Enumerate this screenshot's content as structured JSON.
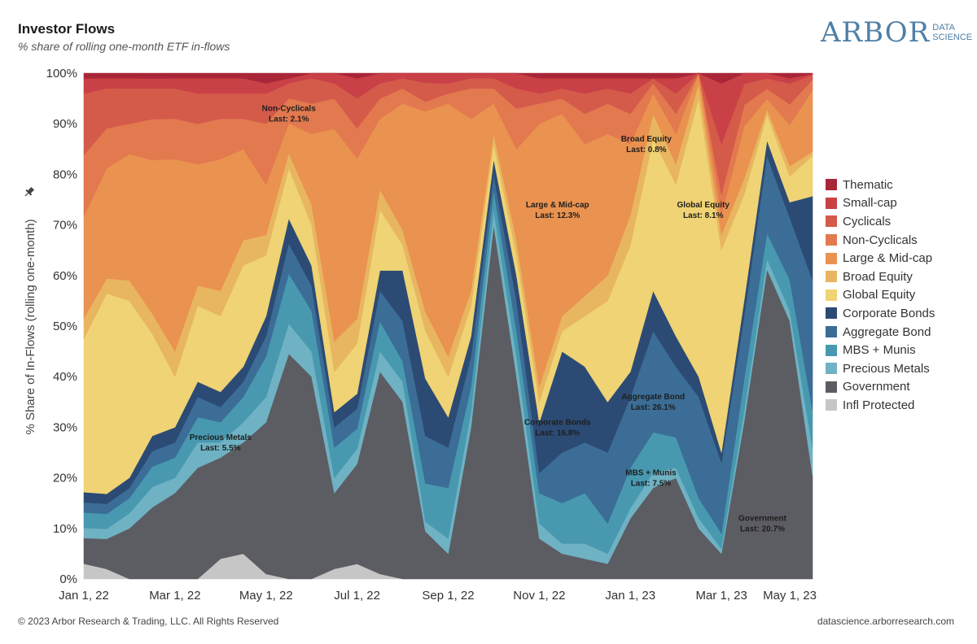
{
  "header": {
    "title": "Investor Flows",
    "subtitle": "% share of rolling one-month ETF in-flows"
  },
  "logo": {
    "main": "ARBOR",
    "sub_top": "DATA",
    "sub_bottom": "SCIENCE",
    "color": "#4f7fa6"
  },
  "footer": {
    "copyright": "© 2023 Arbor Research & Trading, LLC. All Rights Reserved",
    "url": "datascience.arborresearch.com"
  },
  "chart_data": {
    "type": "area",
    "stacked": true,
    "normalized": true,
    "title": "Investor Flows",
    "subtitle": "% share of rolling one-month ETF in-flows",
    "ylabel": "% Share of In-Flows (rolling one-month)",
    "xlabel": "",
    "ylim": [
      0,
      100
    ],
    "y_ticks": [
      "0%",
      "10%",
      "20%",
      "30%",
      "40%",
      "50%",
      "60%",
      "70%",
      "80%",
      "90%",
      "100%"
    ],
    "x_ticks": [
      "Jan 1, 22",
      "Mar 1, 22",
      "May 1, 22",
      "Jul 1, 22",
      "Sep 1, 22",
      "Nov 1, 22",
      "Jan 1, 23",
      "Mar 1, 23",
      "May 1, 23"
    ],
    "x_tick_positions": [
      0,
      2,
      4,
      6,
      8,
      10,
      12,
      14,
      15.5
    ],
    "x": [
      0,
      0.5,
      1,
      1.5,
      2,
      2.5,
      3,
      3.5,
      4,
      4.5,
      5,
      5.5,
      6,
      6.5,
      7,
      7.5,
      8,
      8.5,
      9,
      9.5,
      10,
      10.5,
      11,
      11.5,
      12,
      12.5,
      13,
      13.5,
      14,
      14.5,
      15,
      15.5,
      16
    ],
    "x_unit": "months since Jan 1, 22",
    "legend_position": "right",
    "series": [
      {
        "name": "Infl Protected",
        "color": "#c6c6c6",
        "values": [
          3,
          2,
          0,
          0,
          0,
          0,
          4,
          5,
          1,
          0,
          0,
          2,
          3,
          1,
          0,
          0,
          0,
          0,
          0,
          0,
          0,
          0,
          0,
          0,
          0,
          0,
          0,
          0,
          0,
          0,
          0,
          0,
          0
        ]
      },
      {
        "name": "Government",
        "color": "#5c5c63",
        "values": [
          5,
          6,
          10,
          14,
          17,
          22,
          20,
          22,
          30,
          45,
          40,
          15,
          20,
          40,
          35,
          10,
          5,
          30,
          70,
          40,
          8,
          5,
          4,
          3,
          12,
          18,
          20,
          10,
          5,
          30,
          60,
          50,
          20.7
        ]
      },
      {
        "name": "Precious Metals",
        "color": "#6fb2c3",
        "values": [
          2,
          2,
          3,
          4,
          3,
          5,
          3,
          4,
          5,
          6,
          5,
          3,
          3,
          4,
          4,
          2,
          3,
          3,
          3,
          4,
          3,
          2,
          3,
          2,
          2,
          3,
          2,
          2,
          1,
          2,
          2,
          2,
          5.5
        ]
      },
      {
        "name": "MBS + Munis",
        "color": "#4899b0",
        "values": [
          3,
          3,
          3,
          4,
          4,
          5,
          4,
          5,
          8,
          10,
          8,
          6,
          4,
          6,
          4,
          8,
          10,
          5,
          4,
          5,
          6,
          8,
          10,
          6,
          8,
          8,
          6,
          4,
          3,
          6,
          5,
          6,
          7.5
        ]
      },
      {
        "name": "Aggregate Bond",
        "color": "#3b6d97",
        "values": [
          2,
          2,
          2,
          3,
          3,
          4,
          3,
          3,
          4,
          6,
          5,
          4,
          4,
          6,
          8,
          10,
          8,
          6,
          3,
          6,
          4,
          10,
          10,
          14,
          14,
          20,
          14,
          20,
          14,
          12,
          15,
          12,
          26.1
        ]
      },
      {
        "name": "Corporate Bonds",
        "color": "#2c4b74",
        "values": [
          2,
          2,
          2,
          3,
          3,
          3,
          3,
          3,
          4,
          5,
          4,
          3,
          3,
          4,
          10,
          12,
          6,
          4,
          3,
          5,
          10,
          20,
          15,
          10,
          5,
          8,
          6,
          4,
          2,
          3,
          3,
          3,
          16.8
        ]
      },
      {
        "name": "Global Equity",
        "color": "#efd374",
        "values": [
          30,
          40,
          35,
          20,
          10,
          15,
          15,
          20,
          12,
          10,
          8,
          8,
          10,
          12,
          5,
          10,
          8,
          6,
          3,
          4,
          4,
          4,
          10,
          20,
          25,
          30,
          30,
          55,
          40,
          20,
          5,
          5,
          8.1
        ]
      },
      {
        "name": "Broad Equity",
        "color": "#e8b660",
        "values": [
          4,
          3,
          4,
          4,
          5,
          4,
          5,
          5,
          4,
          3,
          4,
          6,
          5,
          4,
          3,
          4,
          4,
          3,
          2,
          3,
          3,
          3,
          4,
          5,
          6,
          5,
          4,
          3,
          3,
          3,
          1,
          2,
          0.8
        ]
      },
      {
        "name": "Large & Mid-cap",
        "color": "#ea9250",
        "values": [
          20,
          22,
          25,
          30,
          38,
          24,
          26,
          18,
          10,
          6,
          14,
          42,
          32,
          14,
          25,
          42,
          50,
          34,
          6,
          18,
          52,
          40,
          30,
          28,
          14,
          4,
          6,
          2,
          4,
          10,
          2,
          8,
          12.3
        ]
      },
      {
        "name": "Non-Cyclicals",
        "color": "#e2794f",
        "values": [
          12,
          8,
          6,
          8,
          8,
          8,
          8,
          6,
          12,
          5,
          6,
          6,
          6,
          4,
          3,
          2,
          2,
          6,
          3,
          8,
          4,
          3,
          6,
          6,
          6,
          2,
          4,
          0,
          4,
          4,
          2,
          4,
          2.1
        ]
      },
      {
        "name": "Cyclicals",
        "color": "#d45a4a",
        "values": [
          12,
          8,
          7,
          6,
          6,
          6,
          5,
          5,
          6,
          3,
          5,
          3,
          6,
          3,
          2,
          4,
          2,
          2,
          2,
          4,
          2,
          2,
          4,
          3,
          4,
          1,
          4,
          0,
          10,
          4,
          2,
          4,
          1
        ]
      },
      {
        "name": "Small-cap",
        "color": "#c94046",
        "values": [
          3,
          2,
          2,
          2,
          2,
          3,
          3,
          3,
          2,
          1,
          1,
          2,
          4,
          2,
          1,
          2,
          2,
          1,
          1,
          3,
          3,
          2,
          3,
          2,
          3,
          0,
          3,
          0,
          12,
          2,
          1,
          1,
          0.2
        ]
      },
      {
        "name": "Thematic",
        "color": "#a82637",
        "values": [
          1,
          1,
          1,
          1,
          1,
          1,
          1,
          1,
          2,
          1,
          0,
          0,
          1,
          0,
          0,
          0,
          0,
          0,
          0,
          0,
          1,
          1,
          1,
          1,
          1,
          1,
          1,
          0,
          2,
          0,
          0,
          1,
          0.1
        ]
      }
    ],
    "annotations": [
      {
        "series": "Non-Cyclicals",
        "label": "Non-Cyclicals",
        "last_label": "Last: 2.1%",
        "x": 4.5,
        "y": 92.5
      },
      {
        "series": "Broad Equity",
        "label": "Broad Equity",
        "last_label": "Last: 0.8%",
        "x": 12.35,
        "y": 86.5
      },
      {
        "series": "Large & Mid-cap",
        "label": "Large & Mid-cap",
        "last_label": "Last: 12.3%",
        "x": 10.4,
        "y": 73.5
      },
      {
        "series": "Global Equity",
        "label": "Global Equity",
        "last_label": "Last: 8.1%",
        "x": 13.6,
        "y": 73.5
      },
      {
        "series": "Precious Metals",
        "label": "Precious Metals",
        "last_label": "Last: 5.5%",
        "x": 3.0,
        "y": 27.5
      },
      {
        "series": "Aggregate Bond",
        "label": "Aggregate Bond",
        "last_label": "Last: 26.1%",
        "x": 12.5,
        "y": 35.5
      },
      {
        "series": "Corporate Bonds",
        "label": "Corporate Bonds",
        "last_label": "Last: 16.8%",
        "x": 10.4,
        "y": 30.5
      },
      {
        "series": "MBS + Munis",
        "label": "MBS + Munis",
        "last_label": "Last: 7.5%",
        "x": 12.45,
        "y": 20.5
      },
      {
        "series": "Government",
        "label": "Government",
        "last_label": "Last: 20.7%",
        "x": 14.9,
        "y": 11.5
      }
    ]
  }
}
